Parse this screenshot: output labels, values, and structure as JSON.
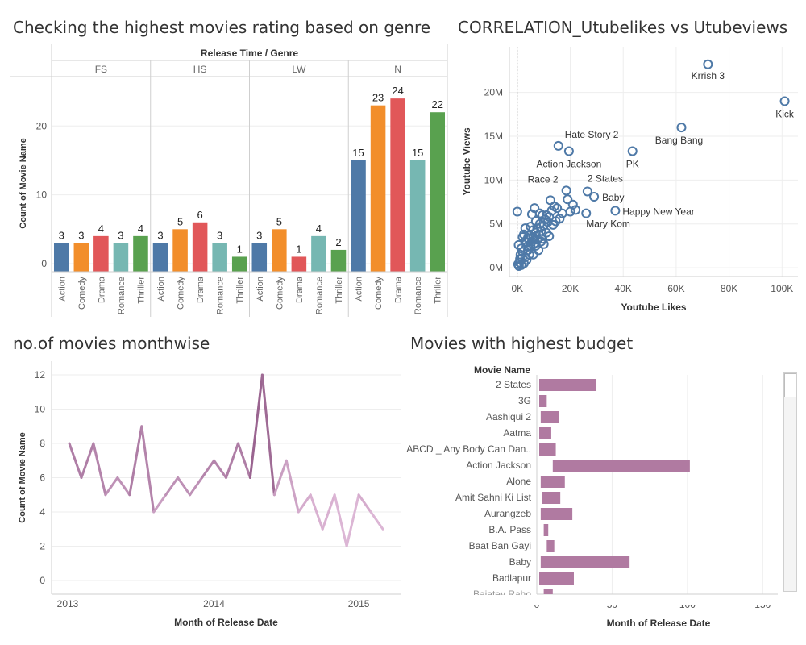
{
  "dashboard": {
    "panels": [
      {
        "title": "Checking the highest movies rating based on genre"
      },
      {
        "title": "CORRELATION_Utubelikes vs Utubeviews"
      },
      {
        "title": "no.of movies monthwise"
      },
      {
        "title": "Movies with highest budget"
      }
    ]
  },
  "colors": {
    "Action": "#4e79a7",
    "Comedy": "#f28e2b",
    "Drama": "#e15759",
    "Romance": "#76b7b2",
    "Thriller": "#59a14f",
    "scatter": "#4e79a7",
    "line_light": "#e3bedc",
    "line_dark": "#7a3e6f",
    "budget_bar": "#b07aa1",
    "grid": "#eeeeee",
    "axis": "#cfcfcf"
  },
  "chart_data": [
    {
      "type": "bar",
      "title": "Checking the highest movies rating based on genre",
      "column_header": "Release Time / Genre",
      "ylabel": "Count of Movie Name",
      "ylim": [
        0,
        28
      ],
      "yticks": [
        0,
        10,
        20
      ],
      "groups": [
        {
          "name": "FS",
          "categories": [
            "Action",
            "Comedy",
            "Drama",
            "Romance",
            "Thriller"
          ],
          "values": [
            3,
            3,
            4,
            3,
            4
          ]
        },
        {
          "name": "HS",
          "categories": [
            "Action",
            "Comedy",
            "Drama",
            "Romance",
            "Thriller"
          ],
          "values": [
            3,
            5,
            6,
            3,
            1
          ]
        },
        {
          "name": "LW",
          "categories": [
            "Action",
            "Comedy",
            "Drama",
            "Romance",
            "Thriller"
          ],
          "values": [
            3,
            5,
            1,
            4,
            2
          ]
        },
        {
          "name": "N",
          "categories": [
            "Action",
            "Comedy",
            "Drama",
            "Romance",
            "Thriller"
          ],
          "values": [
            15,
            23,
            24,
            15,
            22
          ]
        }
      ]
    },
    {
      "type": "scatter",
      "title": "CORRELATION_Utubelikes vs Utubeviews",
      "xlabel": "Youtube Likes",
      "ylabel": "Youtube Views",
      "xlim": [
        -3000,
        106000
      ],
      "ylim": [
        -1000000,
        25200000
      ],
      "xticks": [
        0,
        20000,
        40000,
        60000,
        80000,
        100000
      ],
      "xtick_labels": [
        "0K",
        "20K",
        "40K",
        "60K",
        "80K",
        "100K"
      ],
      "yticks": [
        0,
        5000000,
        10000000,
        15000000,
        20000000
      ],
      "ytick_labels": [
        "0M",
        "5M",
        "10M",
        "15M",
        "20M"
      ],
      "labeled_points": [
        {
          "label": "Krrish 3",
          "x": 72000,
          "y": 23200000
        },
        {
          "label": "Kick",
          "x": 101000,
          "y": 19000000
        },
        {
          "label": "Bang Bang",
          "x": 62000,
          "y": 16000000
        },
        {
          "label": "Hate Story 2",
          "x": 15500,
          "y": 13900000
        },
        {
          "label": "PK",
          "x": 43500,
          "y": 13300000
        },
        {
          "label": "Action Jackson",
          "x": 19500,
          "y": 13300000
        },
        {
          "label": "2 States",
          "x": 26500,
          "y": 8700000
        },
        {
          "label": "Race 2",
          "x": 18500,
          "y": 8800000
        },
        {
          "label": "Baby",
          "x": 29000,
          "y": 8100000
        },
        {
          "label": "Happy New Year",
          "x": 37000,
          "y": 6500000
        },
        {
          "label": "Mary Kom",
          "x": 26000,
          "y": 6200000
        }
      ],
      "points": [
        [
          0,
          6400000
        ],
        [
          500,
          2600000
        ],
        [
          2000,
          1800000
        ],
        [
          1000,
          1000000
        ],
        [
          300,
          400000
        ],
        [
          600,
          200000
        ],
        [
          1500,
          300000
        ],
        [
          2500,
          500000
        ],
        [
          3000,
          1200000
        ],
        [
          3500,
          900000
        ],
        [
          4000,
          2000000
        ],
        [
          4500,
          1500000
        ],
        [
          5000,
          2500000
        ],
        [
          5500,
          3000000
        ],
        [
          6000,
          3500000
        ],
        [
          6500,
          2800000
        ],
        [
          7000,
          4000000
        ],
        [
          7500,
          4500000
        ],
        [
          8000,
          3800000
        ],
        [
          8500,
          5000000
        ],
        [
          9000,
          4200000
        ],
        [
          9500,
          3300000
        ],
        [
          10000,
          4800000
        ],
        [
          10500,
          5500000
        ],
        [
          11000,
          6000000
        ],
        [
          11500,
          5200000
        ],
        [
          12000,
          5800000
        ],
        [
          12500,
          7700000
        ],
        [
          13000,
          6500000
        ],
        [
          13500,
          4900000
        ],
        [
          14000,
          7000000
        ],
        [
          14500,
          5300000
        ],
        [
          15000,
          6800000
        ],
        [
          16000,
          5600000
        ],
        [
          17000,
          6200000
        ],
        [
          19000,
          7800000
        ],
        [
          20000,
          6400000
        ],
        [
          21000,
          7200000
        ],
        [
          22000,
          6600000
        ],
        [
          3000,
          3000000
        ],
        [
          4000,
          2500000
        ],
        [
          2000,
          3500000
        ],
        [
          1500,
          2200000
        ],
        [
          6000,
          1500000
        ],
        [
          7000,
          2500000
        ],
        [
          8000,
          2000000
        ],
        [
          9000,
          3000000
        ],
        [
          5000,
          4700000
        ],
        [
          6000,
          4300000
        ],
        [
          3000,
          4500000
        ],
        [
          2500,
          3800000
        ],
        [
          1200,
          1500000
        ],
        [
          800,
          600000
        ],
        [
          1800,
          1100000
        ],
        [
          4000,
          3400000
        ],
        [
          7500,
          3200000
        ],
        [
          11000,
          4000000
        ],
        [
          12000,
          3600000
        ],
        [
          10000,
          2700000
        ],
        [
          8500,
          6200000
        ],
        [
          7000,
          5300000
        ],
        [
          5500,
          6100000
        ],
        [
          6500,
          6800000
        ],
        [
          9500,
          6000000
        ],
        [
          3500,
          2900000
        ],
        [
          4500,
          3700000
        ]
      ]
    },
    {
      "type": "line",
      "title": "no.of movies monthwise",
      "xlabel": "Month of Release Date",
      "ylabel": "Count of Movie Name",
      "ylim": [
        -0.8,
        12.8
      ],
      "yticks": [
        0,
        2,
        4,
        6,
        8,
        10,
        12
      ],
      "x_tick_labels": [
        "2013",
        "2014",
        "2015"
      ],
      "x": [
        "2013-01",
        "2013-02",
        "2013-03",
        "2013-04",
        "2013-05",
        "2013-06",
        "2013-07",
        "2013-08",
        "2013-09",
        "2013-10",
        "2013-11",
        "2013-12",
        "2014-01",
        "2014-02",
        "2014-03",
        "2014-04",
        "2014-05",
        "2014-06",
        "2014-07",
        "2014-08",
        "2014-09",
        "2014-10",
        "2014-11",
        "2014-12",
        "2015-01",
        "2015-02",
        "2015-03"
      ],
      "values": [
        8,
        6,
        8,
        5,
        6,
        5,
        9,
        4,
        5,
        6,
        5,
        6,
        7,
        6,
        8,
        6,
        12,
        5,
        7,
        4,
        5,
        3,
        5,
        2,
        5,
        4,
        3
      ]
    },
    {
      "type": "bar",
      "orientation": "horizontal",
      "title": "Movies with highest budget",
      "row_header": "Movie Name",
      "xlabel": "Month of Release Date",
      "xlim": [
        0,
        160
      ],
      "xticks": [
        0,
        50,
        100,
        150
      ],
      "categories": [
        "2 States",
        "3G",
        "Aashiqui 2",
        "Aatma",
        "ABCD _ Any Body Can Dan..",
        "Action Jackson",
        "Alone",
        "Amit Sahni Ki List",
        "Aurangzeb",
        "B.A. Pass",
        "Baat Ban Gayi",
        "Baby",
        "Badlapur",
        "Bajatey Raho"
      ],
      "values": [
        [
          0,
          38
        ],
        [
          0,
          5
        ],
        [
          1,
          13
        ],
        [
          0,
          8
        ],
        [
          0,
          11
        ],
        [
          9,
          100
        ],
        [
          1,
          17
        ],
        [
          2,
          14
        ],
        [
          1,
          22
        ],
        [
          3,
          6
        ],
        [
          5,
          10
        ],
        [
          1,
          60
        ],
        [
          0,
          23
        ],
        [
          3,
          9
        ]
      ]
    }
  ]
}
